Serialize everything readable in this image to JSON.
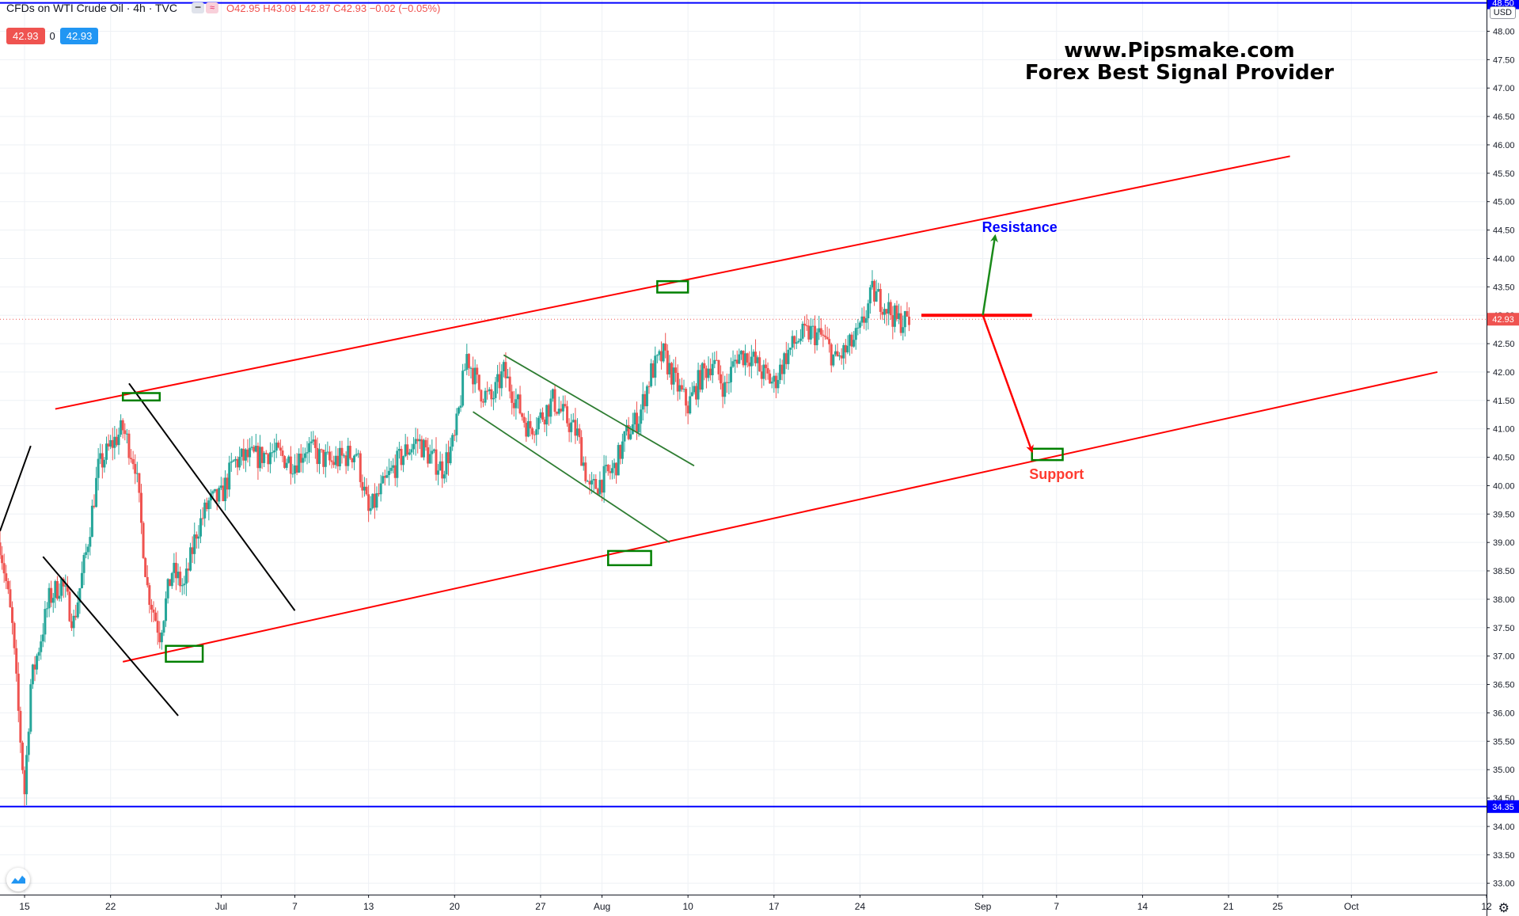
{
  "header": {
    "symbol": "CFDs on WTI Crude Oil · 4h · TVC",
    "ohlc_text": "O42.95 H43.09 L42.87 C42.93 −0.02 (−0.05%)",
    "sell_price": "42.93",
    "spread": "0",
    "buy_price": "42.93",
    "currency": "USD"
  },
  "watermark": {
    "line1": "www.Pipsmake.com",
    "line2": "Forex Best Signal Provider"
  },
  "colors": {
    "up": "#26a69a",
    "down": "#ef5350",
    "channel": "#ff0000",
    "horizontal": "#0000ff",
    "box": "#008000",
    "wedge": "#2e7d32",
    "trend_black": "#000000",
    "resistance_text": "#0000ff",
    "support_text": "#ff3b30"
  },
  "chart_data": {
    "type": "candlestick",
    "y_range": [
      32.8,
      48.55
    ],
    "y_ticks": [
      "48.00",
      "47.50",
      "47.00",
      "46.50",
      "46.00",
      "45.50",
      "45.00",
      "44.50",
      "44.00",
      "43.50",
      "43.00",
      "42.50",
      "42.00",
      "41.50",
      "41.00",
      "40.50",
      "40.00",
      "39.50",
      "39.00",
      "38.50",
      "38.00",
      "37.50",
      "37.00",
      "36.50",
      "36.00",
      "35.50",
      "35.00",
      "34.50",
      "34.00",
      "33.50",
      "33.00"
    ],
    "x_range_days": [
      -2,
      119
    ],
    "x_ticks": [
      {
        "label": "15",
        "day": 0
      },
      {
        "label": "22",
        "day": 7
      },
      {
        "label": "Jul",
        "day": 16
      },
      {
        "label": "7",
        "day": 22
      },
      {
        "label": "13",
        "day": 28
      },
      {
        "label": "20",
        "day": 35
      },
      {
        "label": "27",
        "day": 42
      },
      {
        "label": "Aug",
        "day": 47
      },
      {
        "label": "10",
        "day": 54
      },
      {
        "label": "17",
        "day": 61
      },
      {
        "label": "24",
        "day": 68
      },
      {
        "label": "Sep",
        "day": 78
      },
      {
        "label": "7",
        "day": 84
      },
      {
        "label": "14",
        "day": 91
      },
      {
        "label": "21",
        "day": 98
      },
      {
        "label": "25",
        "day": 102
      },
      {
        "label": "Oct",
        "day": 108
      },
      {
        "label": "12",
        "day": 119
      }
    ],
    "last_price": {
      "value": 42.93,
      "label": "42.93"
    },
    "horizontal_levels": [
      {
        "value": 48.5,
        "label": "48.50"
      },
      {
        "value": 34.35,
        "label": "34.35"
      }
    ],
    "close_path": [
      {
        "d": -2,
        "c": 39.0
      },
      {
        "d": -1.5,
        "c": 38.3
      },
      {
        "d": -1,
        "c": 37.5
      },
      {
        "d": -0.5,
        "c": 36.0
      },
      {
        "d": 0,
        "c": 34.6
      },
      {
        "d": 0.5,
        "c": 36.5
      },
      {
        "d": 1,
        "c": 37.0
      },
      {
        "d": 2,
        "c": 38.0
      },
      {
        "d": 3,
        "c": 38.3
      },
      {
        "d": 4,
        "c": 37.6
      },
      {
        "d": 5,
        "c": 38.8
      },
      {
        "d": 6,
        "c": 40.3
      },
      {
        "d": 7,
        "c": 40.7
      },
      {
        "d": 8,
        "c": 41.0
      },
      {
        "d": 9,
        "c": 40.4
      },
      {
        "d": 10,
        "c": 38.2
      },
      {
        "d": 11,
        "c": 37.4
      },
      {
        "d": 12,
        "c": 38.5
      },
      {
        "d": 13,
        "c": 38.2
      },
      {
        "d": 14,
        "c": 39.2
      },
      {
        "d": 15,
        "c": 39.7
      },
      {
        "d": 16,
        "c": 39.8
      },
      {
        "d": 17,
        "c": 40.4
      },
      {
        "d": 18,
        "c": 40.5
      },
      {
        "d": 19,
        "c": 40.5
      },
      {
        "d": 20,
        "c": 40.6
      },
      {
        "d": 21,
        "c": 40.5
      },
      {
        "d": 22,
        "c": 40.4
      },
      {
        "d": 23,
        "c": 40.7
      },
      {
        "d": 24,
        "c": 40.5
      },
      {
        "d": 25,
        "c": 40.4
      },
      {
        "d": 26,
        "c": 40.5
      },
      {
        "d": 27,
        "c": 40.6
      },
      {
        "d": 28,
        "c": 39.5
      },
      {
        "d": 29,
        "c": 39.9
      },
      {
        "d": 30,
        "c": 40.3
      },
      {
        "d": 31,
        "c": 40.6
      },
      {
        "d": 32,
        "c": 40.8
      },
      {
        "d": 33,
        "c": 40.5
      },
      {
        "d": 34,
        "c": 40.3
      },
      {
        "d": 35,
        "c": 40.8
      },
      {
        "d": 36,
        "c": 42.3
      },
      {
        "d": 37,
        "c": 41.7
      },
      {
        "d": 38,
        "c": 41.5
      },
      {
        "d": 39,
        "c": 42.0
      },
      {
        "d": 40,
        "c": 41.5
      },
      {
        "d": 41,
        "c": 41.0
      },
      {
        "d": 42,
        "c": 41.2
      },
      {
        "d": 43,
        "c": 41.5
      },
      {
        "d": 44,
        "c": 41.2
      },
      {
        "d": 45,
        "c": 40.9
      },
      {
        "d": 46,
        "c": 39.9
      },
      {
        "d": 47,
        "c": 40.1
      },
      {
        "d": 48,
        "c": 40.3
      },
      {
        "d": 49,
        "c": 40.9
      },
      {
        "d": 50,
        "c": 41.2
      },
      {
        "d": 51,
        "c": 42.0
      },
      {
        "d": 52,
        "c": 42.3
      },
      {
        "d": 53,
        "c": 41.8
      },
      {
        "d": 54,
        "c": 41.4
      },
      {
        "d": 55,
        "c": 41.9
      },
      {
        "d": 56,
        "c": 42.2
      },
      {
        "d": 57,
        "c": 41.7
      },
      {
        "d": 58,
        "c": 42.3
      },
      {
        "d": 59,
        "c": 42.3
      },
      {
        "d": 60,
        "c": 42.0
      },
      {
        "d": 61,
        "c": 41.8
      },
      {
        "d": 62,
        "c": 42.3
      },
      {
        "d": 63,
        "c": 42.6
      },
      {
        "d": 64,
        "c": 42.7
      },
      {
        "d": 65,
        "c": 42.6
      },
      {
        "d": 66,
        "c": 42.2
      },
      {
        "d": 67,
        "c": 42.4
      },
      {
        "d": 68,
        "c": 42.7
      },
      {
        "d": 69,
        "c": 43.4
      },
      {
        "d": 70,
        "c": 43.2
      },
      {
        "d": 71,
        "c": 42.9
      },
      {
        "d": 72,
        "c": 42.9
      }
    ],
    "channel_lines": [
      {
        "name": "upper",
        "from": {
          "d": 2.5,
          "v": 41.35
        },
        "to": {
          "d": 103,
          "v": 45.8
        }
      },
      {
        "name": "lower",
        "from": {
          "d": 8,
          "v": 36.9
        },
        "to": {
          "d": 115,
          "v": 42.0
        }
      }
    ],
    "trend_lines": [
      {
        "from": {
          "d": -2,
          "v": 39.2
        },
        "to": {
          "d": 0.5,
          "v": 40.7
        }
      },
      {
        "from": {
          "d": 1.5,
          "v": 38.75
        },
        "to": {
          "d": 12.5,
          "v": 35.95
        }
      },
      {
        "from": {
          "d": 8.5,
          "v": 41.8
        },
        "to": {
          "d": 22,
          "v": 37.8
        }
      }
    ],
    "wedge_lines": [
      {
        "from": {
          "d": 39,
          "v": 42.3
        },
        "to": {
          "d": 54.5,
          "v": 40.35
        }
      },
      {
        "from": {
          "d": 36.5,
          "v": 41.3
        },
        "to": {
          "d": 52.5,
          "v": 39.0
        }
      }
    ],
    "boxes": [
      {
        "d1": 8,
        "d2": 11,
        "v1": 41.63,
        "v2": 41.5
      },
      {
        "d1": 11.5,
        "d2": 14.5,
        "v1": 37.18,
        "v2": 36.9
      },
      {
        "d1": 47.5,
        "d2": 51,
        "v1": 38.85,
        "v2": 38.6
      },
      {
        "d1": 51.5,
        "d2": 54,
        "v1": 43.6,
        "v2": 43.4
      },
      {
        "d1": 82,
        "d2": 84.5,
        "v1": 40.65,
        "v2": 40.45
      }
    ],
    "annotations": [
      {
        "type": "hline",
        "d1": 73,
        "d2": 82,
        "v": 43.0,
        "color": "red"
      },
      {
        "type": "arrow",
        "from": {
          "d": 78,
          "v": 43.0
        },
        "to": {
          "d": 79,
          "v": 44.4
        },
        "color": "green"
      },
      {
        "type": "arrow",
        "from": {
          "d": 78,
          "v": 43.0
        },
        "to": {
          "d": 82,
          "v": 40.6
        },
        "color": "red"
      },
      {
        "type": "text",
        "text": "Resistance",
        "d": 81,
        "v": 44.55
      },
      {
        "type": "text",
        "text": "Support",
        "d": 84,
        "v": 40.2
      }
    ]
  }
}
